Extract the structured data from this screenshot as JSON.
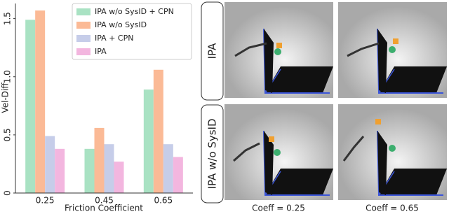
{
  "chart_data": {
    "type": "bar",
    "y_label": "Vel-Diff",
    "x_label": "Friction Coefficient",
    "categories": [
      "0.25",
      "0.45",
      "0.65"
    ],
    "series": [
      {
        "name": "IPA w/o SysID + CPN",
        "color": "#a9e2c3",
        "values": [
          1.49,
          0.38,
          0.89
        ]
      },
      {
        "name": "IPA w/o SysID",
        "color": "#fbba96",
        "values": [
          1.57,
          0.56,
          1.06
        ]
      },
      {
        "name": "IPA + CPN",
        "color": "#c6cde9",
        "values": [
          0.49,
          0.42,
          0.42
        ]
      },
      {
        "name": "IPA",
        "color": "#f3b6df",
        "values": [
          0.38,
          0.27,
          0.31
        ]
      }
    ],
    "ylim": [
      0,
      1.63
    ],
    "yticks": [
      0,
      0.5,
      {
        "value": 1,
        "label": "1.0"
      },
      1.5
    ],
    "legend": "upper right"
  },
  "image_grid": {
    "row_labels": [
      "IPA",
      "IPA w/o SysID"
    ],
    "column_labels": [
      "Coeff = 0.25",
      "Coeff = 0.65"
    ]
  }
}
